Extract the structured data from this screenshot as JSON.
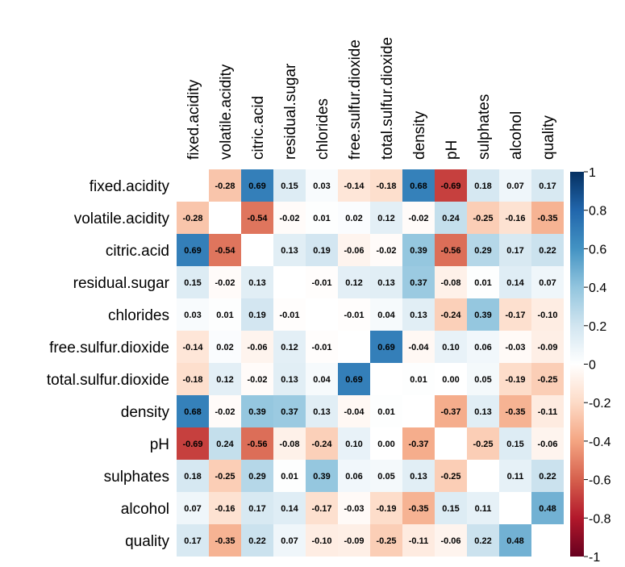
{
  "chart_data": {
    "type": "heatmap",
    "variables": [
      "fixed.acidity",
      "volatile.acidity",
      "citric.acid",
      "residual.sugar",
      "chlorides",
      "free.sulfur.dioxide",
      "total.sulfur.dioxide",
      "density",
      "pH",
      "sulphates",
      "alcohol",
      "quality"
    ],
    "matrix": [
      [
        null,
        -0.28,
        0.69,
        0.15,
        0.03,
        -0.14,
        -0.18,
        0.68,
        -0.69,
        0.18,
        0.07,
        0.17
      ],
      [
        -0.28,
        null,
        -0.54,
        -0.02,
        0.01,
        0.02,
        0.12,
        -0.02,
        0.24,
        -0.25,
        -0.16,
        -0.35
      ],
      [
        0.69,
        -0.54,
        null,
        0.13,
        0.19,
        -0.06,
        -0.02,
        0.39,
        -0.56,
        0.29,
        0.17,
        0.22
      ],
      [
        0.15,
        -0.02,
        0.13,
        null,
        -0.01,
        0.12,
        0.13,
        0.37,
        -0.08,
        0.01,
        0.14,
        0.07
      ],
      [
        0.03,
        0.01,
        0.19,
        -0.01,
        null,
        -0.01,
        0.04,
        0.13,
        -0.24,
        0.39,
        -0.17,
        -0.1
      ],
      [
        -0.14,
        0.02,
        -0.06,
        0.12,
        -0.01,
        null,
        0.69,
        -0.04,
        0.1,
        0.06,
        -0.03,
        -0.09
      ],
      [
        -0.18,
        0.12,
        -0.02,
        0.13,
        0.04,
        0.69,
        null,
        0.01,
        0.0,
        0.05,
        -0.19,
        -0.25
      ],
      [
        0.68,
        -0.02,
        0.39,
        0.37,
        0.13,
        -0.04,
        0.01,
        null,
        -0.37,
        0.13,
        -0.35,
        -0.11
      ],
      [
        -0.69,
        0.24,
        -0.56,
        -0.08,
        -0.24,
        0.1,
        0.0,
        -0.37,
        null,
        -0.25,
        0.15,
        -0.06
      ],
      [
        0.18,
        -0.25,
        0.29,
        0.01,
        0.39,
        0.06,
        0.05,
        0.13,
        -0.25,
        null,
        0.11,
        0.22
      ],
      [
        0.07,
        -0.16,
        0.17,
        0.14,
        -0.17,
        -0.03,
        -0.19,
        -0.35,
        0.15,
        0.11,
        null,
        0.48
      ],
      [
        0.17,
        -0.35,
        0.22,
        0.07,
        -0.1,
        -0.09,
        -0.25,
        -0.11,
        -0.06,
        0.22,
        0.48,
        null
      ]
    ],
    "colorbar": {
      "range": [
        -1,
        1
      ],
      "ticks": [
        "1",
        "0.8",
        "0.6",
        "0.4",
        "0.2",
        "0",
        "-0.2",
        "-0.4",
        "-0.6",
        "-0.8",
        "-1"
      ]
    },
    "colors": {
      "neg_end": "#67001f",
      "mid": "#ffffff",
      "pos_end": "#053061"
    }
  }
}
